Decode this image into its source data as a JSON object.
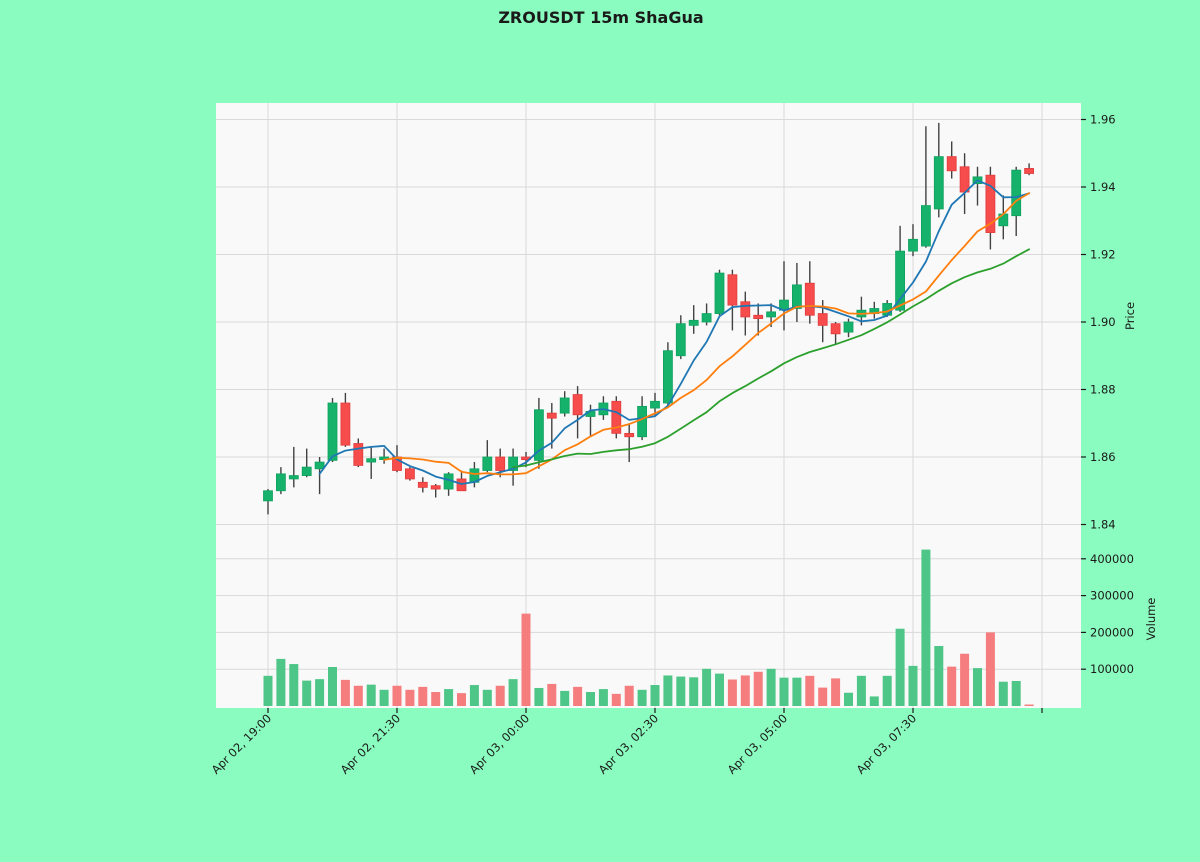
{
  "title": "ZROUSDT 15m ShaGua",
  "colors": {
    "background": "#8AFCBF",
    "plot_bg": "#f9f9f9",
    "grid": "#d9d9d9",
    "up": "#16B26C",
    "up_edge": "#0FA15F",
    "down": "#F64C4C",
    "down_edge": "#E03C3C",
    "vol_up": "#4EC687",
    "vol_down": "#F57D7D",
    "wick": "#424242",
    "ma_colors": [
      "#1f77b4",
      "#ff7f0e",
      "#2ca02c"
    ],
    "text": "#1a1a1a"
  },
  "price_axis": {
    "label": "Price",
    "ticks": [
      1.96,
      1.94,
      1.92,
      1.9,
      1.88,
      1.86,
      1.84
    ]
  },
  "volume_axis": {
    "label": "Volume",
    "ticks": [
      400000,
      300000,
      200000,
      100000
    ]
  },
  "x_axis": {
    "ticks": [
      {
        "i": 0,
        "label": "Apr 02, 19:00"
      },
      {
        "i": 10,
        "label": "Apr 02, 21:30"
      },
      {
        "i": 20,
        "label": "Apr 03, 00:00"
      },
      {
        "i": 30,
        "label": "Apr 03, 02:30"
      },
      {
        "i": 40,
        "label": "Apr 03, 05:00"
      },
      {
        "i": 50,
        "label": "Apr 03, 07:30"
      },
      {
        "i": 60,
        "label": ""
      }
    ]
  },
  "chart_data": {
    "type": "candlestick",
    "symbol": "ZROUSDT",
    "interval": "15m",
    "title": "ZROUSDT 15m ShaGua",
    "ylabel": "Price",
    "ylabel2": "Volume",
    "price_range": [
      1.836,
      1.967
    ],
    "volume_range": [
      0,
      480000
    ],
    "moving_average_periods": [
      5,
      10,
      20
    ],
    "columns": [
      "time",
      "open",
      "high",
      "low",
      "close",
      "volume"
    ],
    "candles": [
      [
        "Apr 02 19:00",
        1.847,
        1.8505,
        1.843,
        1.85,
        82000
      ],
      [
        "Apr 02 19:15",
        1.85,
        1.857,
        1.849,
        1.855,
        128000
      ],
      [
        "Apr 02 19:30",
        1.8535,
        1.863,
        1.851,
        1.8545,
        114000
      ],
      [
        "Apr 02 19:45",
        1.8545,
        1.8625,
        1.854,
        1.857,
        69000
      ],
      [
        "Apr 02 20:00",
        1.8565,
        1.86,
        1.849,
        1.8585,
        73000
      ],
      [
        "Apr 02 20:15",
        1.859,
        1.8775,
        1.8585,
        1.876,
        106000
      ],
      [
        "Apr 02 20:30",
        1.876,
        1.879,
        1.863,
        1.8635,
        71000
      ],
      [
        "Apr 02 20:45",
        1.864,
        1.8655,
        1.857,
        1.8575,
        55000
      ],
      [
        "Apr 02 21:00",
        1.8585,
        1.863,
        1.8535,
        1.8595,
        58000
      ],
      [
        "Apr 02 21:15",
        1.8595,
        1.8625,
        1.858,
        1.86,
        44000
      ],
      [
        "Apr 02 21:30",
        1.86,
        1.8635,
        1.8555,
        1.856,
        55000
      ],
      [
        "Apr 02 21:45",
        1.8565,
        1.857,
        1.853,
        1.8535,
        44000
      ],
      [
        "Apr 02 22:00",
        1.8525,
        1.854,
        1.8495,
        1.851,
        52000
      ],
      [
        "Apr 02 22:15",
        1.8515,
        1.852,
        1.848,
        1.8505,
        38000
      ],
      [
        "Apr 02 22:30",
        1.8505,
        1.8555,
        1.8485,
        1.855,
        46000
      ],
      [
        "Apr 02 22:45",
        1.8535,
        1.856,
        1.85,
        1.85,
        35000
      ],
      [
        "Apr 02 23:00",
        1.8525,
        1.8585,
        1.851,
        1.8565,
        57000
      ],
      [
        "Apr 02 23:15",
        1.856,
        1.865,
        1.8555,
        1.86,
        44000
      ],
      [
        "Apr 02 23:30",
        1.86,
        1.8625,
        1.854,
        1.856,
        55000
      ],
      [
        "Apr 02 23:45",
        1.856,
        1.8625,
        1.8515,
        1.86,
        73000
      ],
      [
        "Apr 03 00:00",
        1.86,
        1.8615,
        1.857,
        1.8595,
        251000
      ],
      [
        "Apr 03 00:15",
        1.859,
        1.8775,
        1.8565,
        1.874,
        49000
      ],
      [
        "Apr 03 00:30",
        1.873,
        1.876,
        1.8625,
        1.8715,
        60000
      ],
      [
        "Apr 03 00:45",
        1.873,
        1.8795,
        1.872,
        1.8775,
        41000
      ],
      [
        "Apr 03 01:00",
        1.8785,
        1.881,
        1.8655,
        1.8725,
        52000
      ],
      [
        "Apr 03 01:15",
        1.872,
        1.8755,
        1.866,
        1.8735,
        38000
      ],
      [
        "Apr 03 01:30",
        1.8725,
        1.878,
        1.871,
        1.876,
        46000
      ],
      [
        "Apr 03 01:45",
        1.8765,
        1.878,
        1.8655,
        1.867,
        33000
      ],
      [
        "Apr 03 02:00",
        1.867,
        1.87,
        1.8585,
        1.866,
        55000
      ],
      [
        "Apr 03 02:15",
        1.866,
        1.878,
        1.865,
        1.875,
        44000
      ],
      [
        "Apr 03 02:30",
        1.8745,
        1.879,
        1.872,
        1.8765,
        57000
      ],
      [
        "Apr 03 02:45",
        1.876,
        1.894,
        1.875,
        1.8915,
        83000
      ],
      [
        "Apr 03 03:00",
        1.89,
        1.902,
        1.889,
        1.8995,
        80000
      ],
      [
        "Apr 03 03:15",
        1.899,
        1.905,
        1.8965,
        1.9005,
        78000
      ],
      [
        "Apr 03 03:30",
        1.9,
        1.9055,
        1.899,
        1.9025,
        101000
      ],
      [
        "Apr 03 03:45",
        1.9025,
        1.9155,
        1.902,
        1.9145,
        88000
      ],
      [
        "Apr 03 04:00",
        1.914,
        1.9155,
        1.8975,
        1.905,
        72000
      ],
      [
        "Apr 03 04:15",
        1.906,
        1.909,
        1.896,
        1.9015,
        83000
      ],
      [
        "Apr 03 04:30",
        1.902,
        1.9055,
        1.896,
        1.901,
        93000
      ],
      [
        "Apr 03 04:45",
        1.9015,
        1.9055,
        1.8985,
        1.903,
        101000
      ],
      [
        "Apr 03 05:00",
        1.9035,
        1.918,
        1.8975,
        1.9065,
        77000
      ],
      [
        "Apr 03 05:15",
        1.904,
        1.9175,
        1.9,
        1.911,
        77000
      ],
      [
        "Apr 03 05:30",
        1.9115,
        1.918,
        1.8995,
        1.902,
        82000
      ],
      [
        "Apr 03 05:45",
        1.9025,
        1.9065,
        1.894,
        1.899,
        50000
      ],
      [
        "Apr 03 06:00",
        1.8995,
        1.9,
        1.8935,
        1.8965,
        75000
      ],
      [
        "Apr 03 06:15",
        1.897,
        1.901,
        1.8955,
        1.9,
        36000
      ],
      [
        "Apr 03 06:30",
        1.9015,
        1.9075,
        1.899,
        1.9035,
        82000
      ],
      [
        "Apr 03 06:45",
        1.9025,
        1.906,
        1.901,
        1.904,
        26000
      ],
      [
        "Apr 03 07:00",
        1.902,
        1.9065,
        1.9015,
        1.9055,
        82000
      ],
      [
        "Apr 03 07:15",
        1.9035,
        1.9285,
        1.903,
        1.921,
        210000
      ],
      [
        "Apr 03 07:30",
        1.921,
        1.929,
        1.9195,
        1.9245,
        109000
      ],
      [
        "Apr 03 07:45",
        1.9225,
        1.958,
        1.922,
        1.9345,
        425000
      ],
      [
        "Apr 03 08:00",
        1.9335,
        1.959,
        1.931,
        1.949,
        163000
      ],
      [
        "Apr 03 08:15",
        1.949,
        1.9535,
        1.9425,
        1.9448,
        107000
      ],
      [
        "Apr 03 08:30",
        1.946,
        1.95,
        1.932,
        1.9385,
        142000
      ],
      [
        "Apr 03 08:45",
        1.941,
        1.946,
        1.9345,
        1.943,
        103000
      ],
      [
        "Apr 03 09:00",
        1.9435,
        1.946,
        1.9215,
        1.9265,
        200000
      ],
      [
        "Apr 03 09:15",
        1.9285,
        1.9375,
        1.9245,
        1.932,
        66000
      ],
      [
        "Apr 03 09:30",
        1.9315,
        1.946,
        1.9255,
        1.945,
        68000
      ],
      [
        "Apr 03 09:45",
        1.9455,
        1.947,
        1.9435,
        1.944,
        4000
      ]
    ]
  }
}
